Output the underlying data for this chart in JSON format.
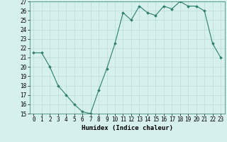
{
  "x": [
    0,
    1,
    2,
    3,
    4,
    5,
    6,
    7,
    8,
    9,
    10,
    11,
    12,
    13,
    14,
    15,
    16,
    17,
    18,
    19,
    20,
    21,
    22,
    23
  ],
  "y": [
    21.5,
    21.5,
    20.0,
    18.0,
    17.0,
    16.0,
    15.2,
    15.0,
    17.5,
    19.8,
    22.5,
    25.8,
    25.0,
    26.5,
    25.8,
    25.5,
    26.5,
    26.2,
    27.0,
    26.5,
    26.5,
    26.0,
    22.5,
    21.0
  ],
  "xlabel": "Humidex (Indice chaleur)",
  "ylim": [
    15,
    27
  ],
  "yticks": [
    15,
    16,
    17,
    18,
    19,
    20,
    21,
    22,
    23,
    24,
    25,
    26,
    27
  ],
  "xticks": [
    0,
    1,
    2,
    3,
    4,
    5,
    6,
    7,
    8,
    9,
    10,
    11,
    12,
    13,
    14,
    15,
    16,
    17,
    18,
    19,
    20,
    21,
    22,
    23
  ],
  "line_color": "#2e7d6e",
  "marker": "D",
  "marker_size": 1.8,
  "bg_color": "#d6f0ee",
  "grid_color": "#b8dcd8",
  "label_fontsize": 6.5,
  "tick_fontsize": 5.5
}
